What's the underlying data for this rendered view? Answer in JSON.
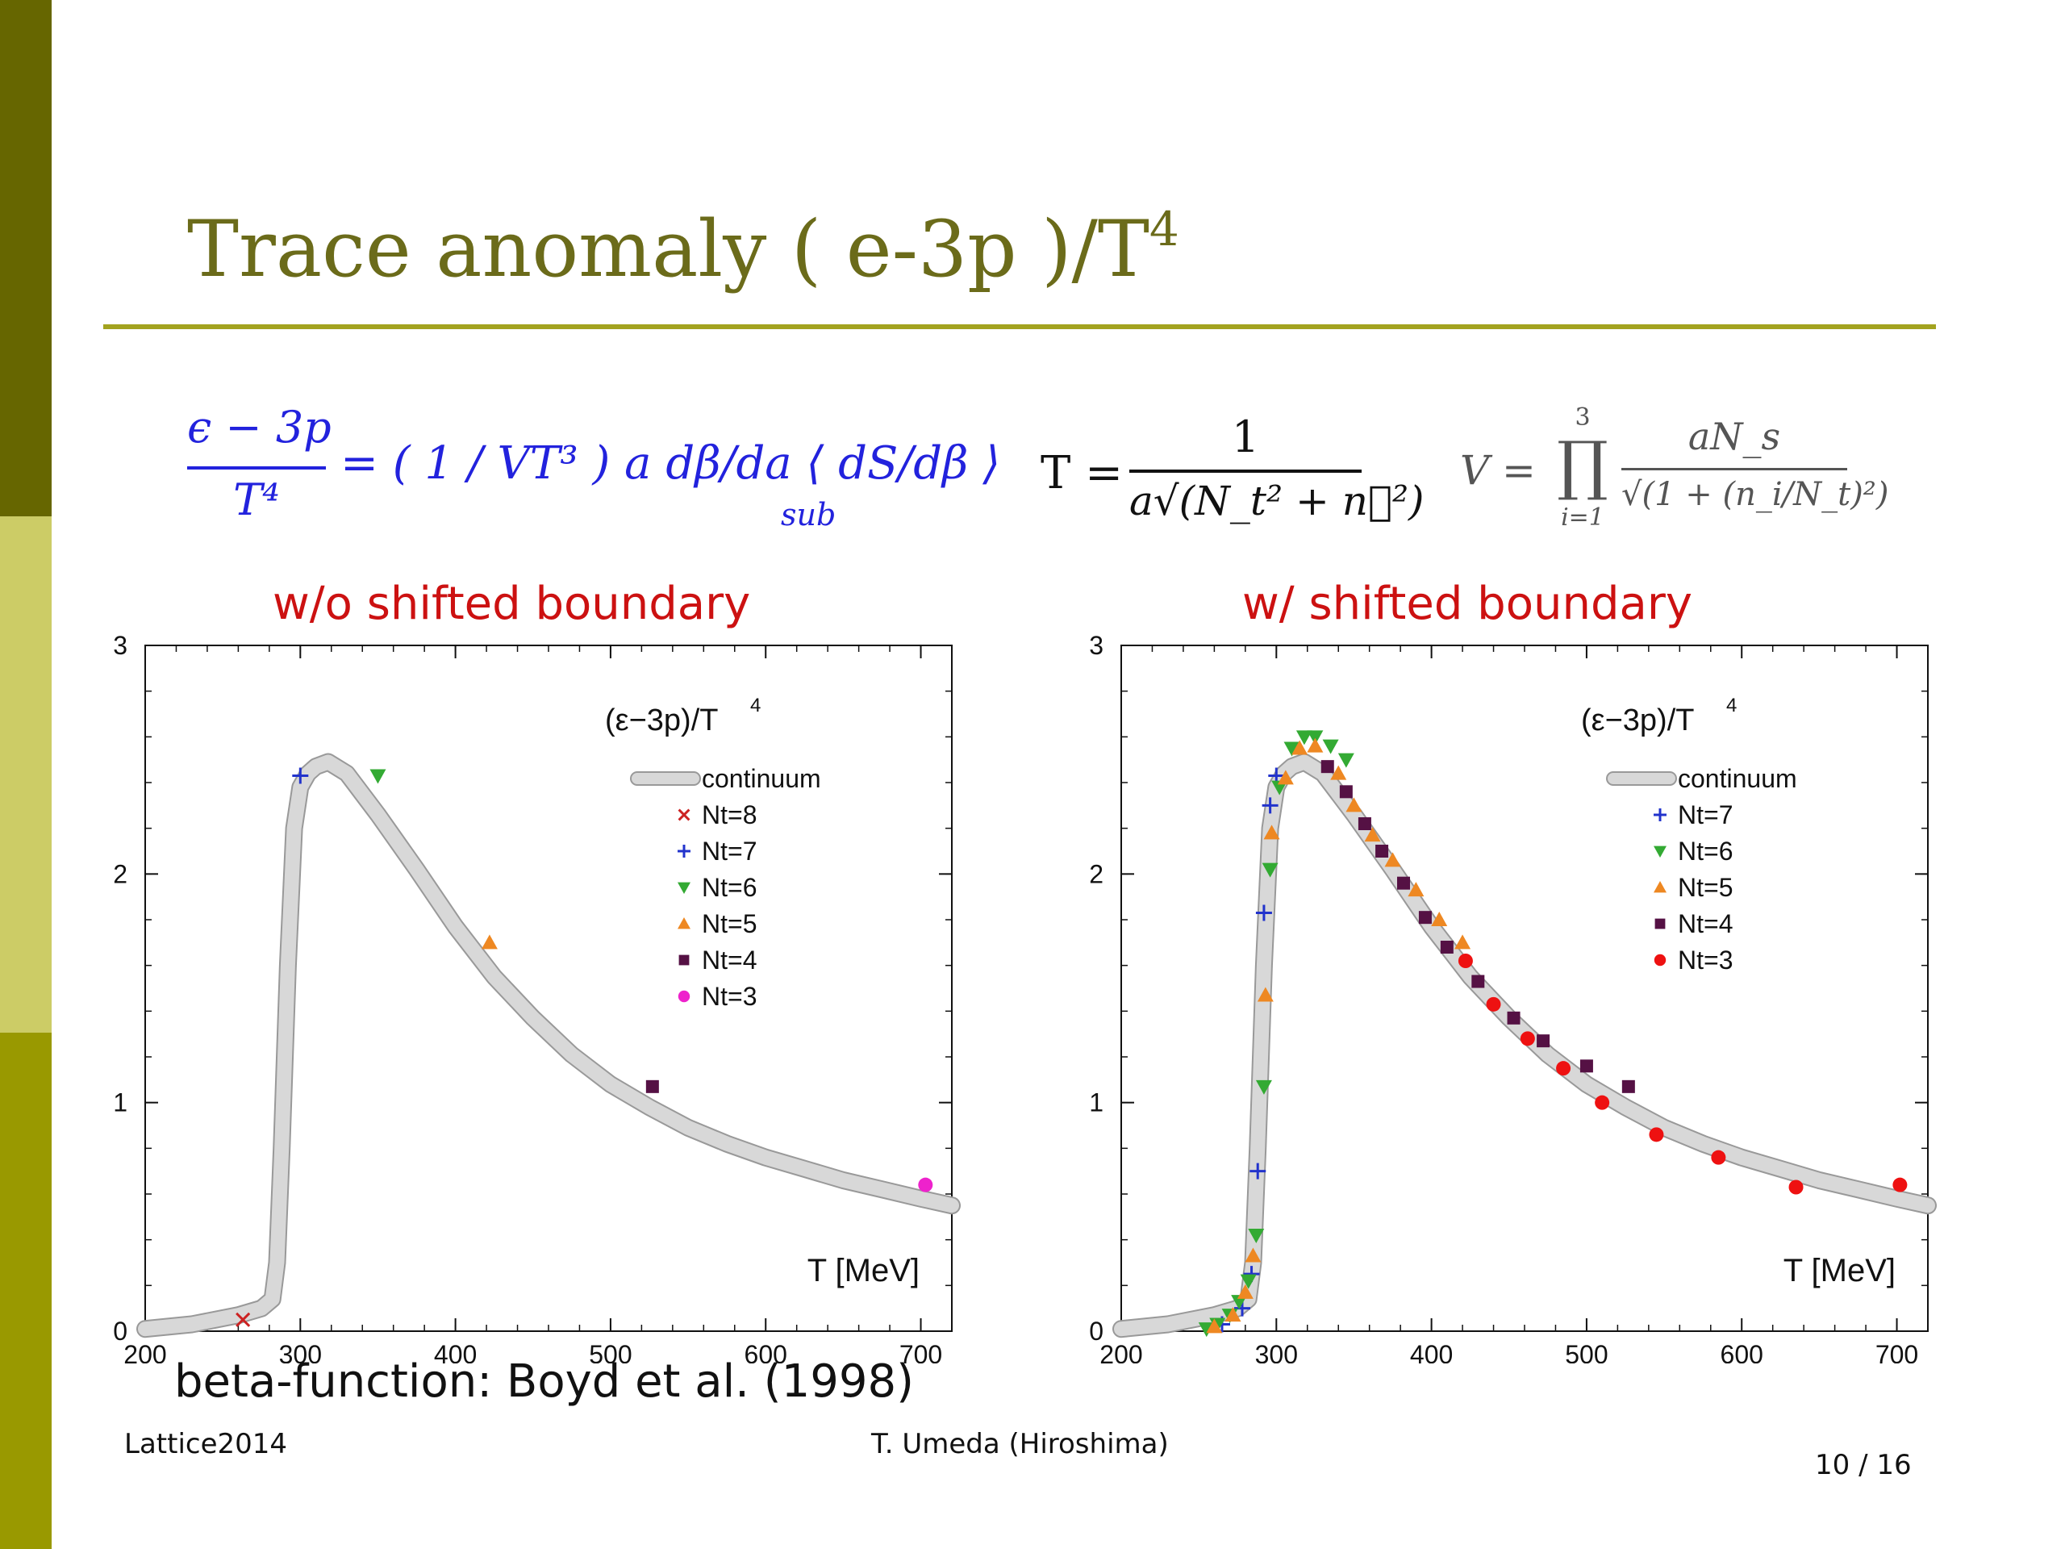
{
  "slide": {
    "title": "Trace anomaly  ( e-3p )/T",
    "title_sup": "4",
    "footer_left": "Lattice2014",
    "footer_center": "T. Umeda (Hiroshima)",
    "page": "10 / 16",
    "note": "beta-function: Boyd et al. (1998)"
  },
  "formulas": {
    "f1_num": "ϵ − 3p",
    "f1_den": "T⁴",
    "f1_rhs": "= ( 1 / VT³ ) a dβ/da ⟨ dS/dβ ⟩",
    "f1_sub": "sub",
    "f2_lhs": "T =",
    "f2_num": "1",
    "f2_den": "a√(N_t² + n⃗²)",
    "f3_lhs": "V =",
    "f3_prod": "∏",
    "f3_top": "3",
    "f3_bottom": "i=1",
    "f3_num": "aN_s",
    "f3_den": "√(1 + (n_i/N_t)²)"
  },
  "colors": {
    "sidebar_top": "#666600",
    "sidebar_mid": "#cccc66",
    "sidebar_bottom": "#999900",
    "title": "#6b6b1a",
    "rule": "#a3a31f",
    "formula_blue": "#2222dd",
    "chart_title": "#cc1111",
    "band": "#d4d4d4",
    "nt8": "#cc2222",
    "nt7": "#2233cc",
    "nt6": "#33aa33",
    "nt5": "#ee8822",
    "nt4": "#551144",
    "nt3_left": "#ee22cc",
    "nt3_right": "#ee1111"
  },
  "chart_data": [
    {
      "type": "scatter",
      "title": "w/o shifted boundary",
      "inner_label": "(ε−3p)/T",
      "inner_label_sup": "4",
      "xlabel": "T [MeV]",
      "ylabel": "",
      "xlim": [
        200,
        720
      ],
      "ylim": [
        0,
        3
      ],
      "xticks": [
        200,
        300,
        400,
        500,
        600,
        700
      ],
      "yticks": [
        0,
        1,
        2,
        3
      ],
      "legend_position": "top-right",
      "continuum_label": "continuum",
      "continuum": {
        "x": [
          200,
          230,
          260,
          275,
          282,
          285,
          288,
          292,
          296,
          300,
          305,
          310,
          318,
          330,
          350,
          375,
          400,
          425,
          450,
          475,
          500,
          525,
          550,
          575,
          600,
          625,
          650,
          675,
          700,
          720
        ],
        "y": [
          0.01,
          0.03,
          0.07,
          0.1,
          0.14,
          0.3,
          0.8,
          1.6,
          2.2,
          2.38,
          2.44,
          2.47,
          2.49,
          2.44,
          2.26,
          2.02,
          1.77,
          1.55,
          1.37,
          1.21,
          1.08,
          0.98,
          0.89,
          0.82,
          0.76,
          0.71,
          0.66,
          0.62,
          0.58,
          0.55
        ]
      },
      "series": [
        {
          "name": "Nt=8",
          "marker": "x",
          "color": "#cc2222",
          "x": [
            263
          ],
          "y": [
            0.05
          ]
        },
        {
          "name": "Nt=7",
          "marker": "plus",
          "color": "#2233cc",
          "x": [
            300
          ],
          "y": [
            2.43
          ]
        },
        {
          "name": "Nt=6",
          "marker": "triangle-down",
          "color": "#33aa33",
          "x": [
            350
          ],
          "y": [
            2.43
          ]
        },
        {
          "name": "Nt=5",
          "marker": "triangle-up",
          "color": "#ee8822",
          "x": [
            422
          ],
          "y": [
            1.7
          ]
        },
        {
          "name": "Nt=4",
          "marker": "square",
          "color": "#551144",
          "x": [
            527
          ],
          "y": [
            1.07
          ]
        },
        {
          "name": "Nt=3",
          "marker": "circle",
          "color": "#ee22cc",
          "x": [
            703
          ],
          "y": [
            0.64
          ]
        }
      ]
    },
    {
      "type": "scatter",
      "title": "w/  shifted boundary",
      "inner_label": "(ε−3p)/T",
      "inner_label_sup": "4",
      "xlabel": "T [MeV]",
      "ylabel": "",
      "xlim": [
        200,
        720
      ],
      "ylim": [
        0,
        3
      ],
      "xticks": [
        200,
        300,
        400,
        500,
        600,
        700
      ],
      "yticks": [
        0,
        1,
        2,
        3
      ],
      "legend_position": "top-right",
      "continuum_label": "continuum",
      "continuum": {
        "x": [
          200,
          230,
          260,
          275,
          282,
          285,
          288,
          292,
          296,
          300,
          305,
          310,
          318,
          330,
          350,
          375,
          400,
          425,
          450,
          475,
          500,
          525,
          550,
          575,
          600,
          625,
          650,
          675,
          700,
          720
        ],
        "y": [
          0.01,
          0.03,
          0.07,
          0.1,
          0.14,
          0.3,
          0.8,
          1.6,
          2.2,
          2.38,
          2.44,
          2.47,
          2.49,
          2.44,
          2.26,
          2.02,
          1.77,
          1.55,
          1.37,
          1.21,
          1.08,
          0.98,
          0.89,
          0.82,
          0.76,
          0.71,
          0.66,
          0.62,
          0.58,
          0.55
        ]
      },
      "series": [
        {
          "name": "Nt=7",
          "marker": "plus",
          "color": "#2233cc",
          "x": [
            265,
            278,
            284,
            288,
            292,
            296,
            300
          ],
          "y": [
            0.03,
            0.1,
            0.25,
            0.7,
            1.83,
            2.3,
            2.43
          ]
        },
        {
          "name": "Nt=6",
          "marker": "triangle-down",
          "color": "#33aa33",
          "x": [
            255,
            262,
            270,
            276,
            282,
            287,
            292,
            296,
            302,
            310,
            318,
            325,
            335,
            345
          ],
          "y": [
            0.01,
            0.03,
            0.07,
            0.13,
            0.22,
            0.42,
            1.07,
            2.02,
            2.38,
            2.55,
            2.6,
            2.6,
            2.56,
            2.5
          ]
        },
        {
          "name": "Nt=5",
          "marker": "triangle-up",
          "color": "#ee8822",
          "x": [
            260,
            272,
            280,
            285,
            293,
            297,
            306,
            315,
            325,
            340,
            350,
            362,
            375,
            390,
            405,
            420
          ],
          "y": [
            0.02,
            0.07,
            0.17,
            0.33,
            1.47,
            2.18,
            2.42,
            2.55,
            2.56,
            2.44,
            2.3,
            2.17,
            2.06,
            1.93,
            1.8,
            1.7
          ]
        },
        {
          "name": "Nt=4",
          "marker": "square",
          "color": "#551144",
          "x": [
            333,
            345,
            357,
            368,
            382,
            396,
            410,
            430,
            453,
            472,
            500,
            527
          ],
          "y": [
            2.47,
            2.36,
            2.22,
            2.1,
            1.96,
            1.81,
            1.68,
            1.53,
            1.37,
            1.27,
            1.16,
            1.07
          ]
        },
        {
          "name": "Nt=3",
          "marker": "circle",
          "color": "#ee1111",
          "x": [
            422,
            440,
            462,
            485,
            510,
            545,
            585,
            635,
            702
          ],
          "y": [
            1.62,
            1.43,
            1.28,
            1.15,
            1.0,
            0.86,
            0.76,
            0.63,
            0.64
          ]
        }
      ]
    }
  ]
}
